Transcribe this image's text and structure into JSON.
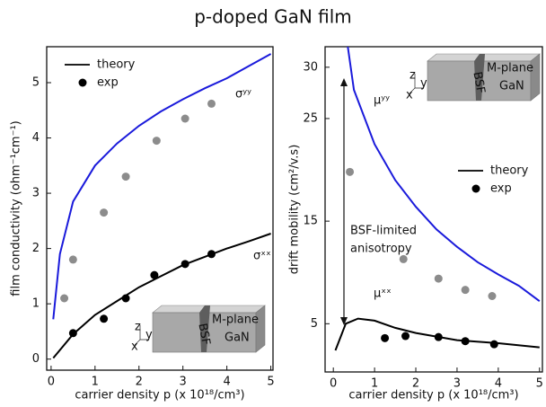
{
  "title": "p-doped GaN film",
  "chart_data": [
    {
      "type": "line",
      "xlabel": "carrier density p (x 10¹⁸/cm³)",
      "ylabel": "film conductivity (ohm⁻¹cm⁻¹)",
      "xlim": [
        -0.1,
        5.05
      ],
      "ylim": [
        -0.2,
        5.65
      ],
      "xticks": [
        0,
        1,
        2,
        3,
        4,
        5
      ],
      "yticks": [
        0,
        1,
        2,
        3,
        4,
        5
      ],
      "legend": [
        "theory",
        "exp"
      ],
      "annotations": [
        "σʸʸ",
        "σˣˣ"
      ],
      "inset": {
        "plane": "M-plane",
        "fault": "BSF",
        "material": "GaN",
        "axes": [
          "z",
          "y",
          "x"
        ]
      },
      "series": [
        {
          "style": "line",
          "color": "#1a1adb",
          "x": [
            0.05,
            0.2,
            0.5,
            1,
            1.5,
            2,
            2.5,
            3,
            3.5,
            4,
            4.5,
            5
          ],
          "values": [
            0.72,
            1.9,
            2.85,
            3.5,
            3.9,
            4.22,
            4.48,
            4.7,
            4.9,
            5.08,
            5.3,
            5.52
          ]
        },
        {
          "style": "line",
          "color": "#000000",
          "x": [
            0.05,
            0.5,
            1,
            1.5,
            2,
            2.5,
            3,
            3.5,
            4,
            4.5,
            5
          ],
          "values": [
            0.02,
            0.45,
            0.8,
            1.05,
            1.3,
            1.5,
            1.7,
            1.85,
            2.0,
            2.13,
            2.27
          ]
        },
        {
          "style": "dots",
          "color": "#8c8c8c",
          "x": [
            0.3,
            0.5,
            1.2,
            1.7,
            2.4,
            3.05,
            3.65
          ],
          "values": [
            1.1,
            1.8,
            2.65,
            3.3,
            3.95,
            4.35,
            4.62
          ]
        },
        {
          "style": "dots",
          "color": "#000000",
          "x": [
            0.5,
            1.2,
            1.7,
            2.35,
            3.05,
            3.65
          ],
          "values": [
            0.47,
            0.73,
            1.1,
            1.52,
            1.72,
            1.9
          ]
        }
      ]
    },
    {
      "type": "line",
      "xlabel": "carrier density p (x 10¹⁸/cm³)",
      "ylabel": "drift mobility (cm²/v.s)",
      "xlim": [
        -0.2,
        5.07
      ],
      "ylim": [
        0.3,
        32
      ],
      "xticks": [
        0,
        1,
        2,
        3,
        4,
        5
      ],
      "yticks": [
        5,
        15,
        25,
        30
      ],
      "legend": [
        "theory",
        "exp"
      ],
      "annotations": [
        "μʸʸ",
        "μˣˣ",
        "BSF-limited",
        "anisotropy"
      ],
      "inset": {
        "plane": "M-plane",
        "fault": "BSF",
        "material": "GaN",
        "axes": [
          "z",
          "y",
          "x"
        ]
      },
      "series": [
        {
          "style": "line",
          "color": "#1a1adb",
          "x": [
            0.35,
            0.5,
            1,
            1.5,
            2,
            2.5,
            3,
            3.5,
            4,
            4.5,
            5
          ],
          "values": [
            32,
            27.8,
            22.5,
            19,
            16.4,
            14.2,
            12.5,
            11,
            9.8,
            8.7,
            7.2
          ]
        },
        {
          "style": "line",
          "color": "#000000",
          "x": [
            0.05,
            0.3,
            0.6,
            1,
            1.5,
            2,
            3,
            4,
            5
          ],
          "values": [
            2.4,
            5,
            5.5,
            5.3,
            4.6,
            4.1,
            3.4,
            3.1,
            2.7
          ]
        },
        {
          "style": "dots",
          "color": "#8c8c8c",
          "x": [
            0.4,
            1.7,
            2.55,
            3.2,
            3.85
          ],
          "values": [
            19.8,
            11.3,
            9.4,
            8.3,
            7.7
          ]
        },
        {
          "style": "dots",
          "color": "#000000",
          "x": [
            1.25,
            1.75,
            2.55,
            3.2,
            3.9
          ],
          "values": [
            3.6,
            3.8,
            3.7,
            3.3,
            3.0
          ]
        }
      ]
    }
  ]
}
